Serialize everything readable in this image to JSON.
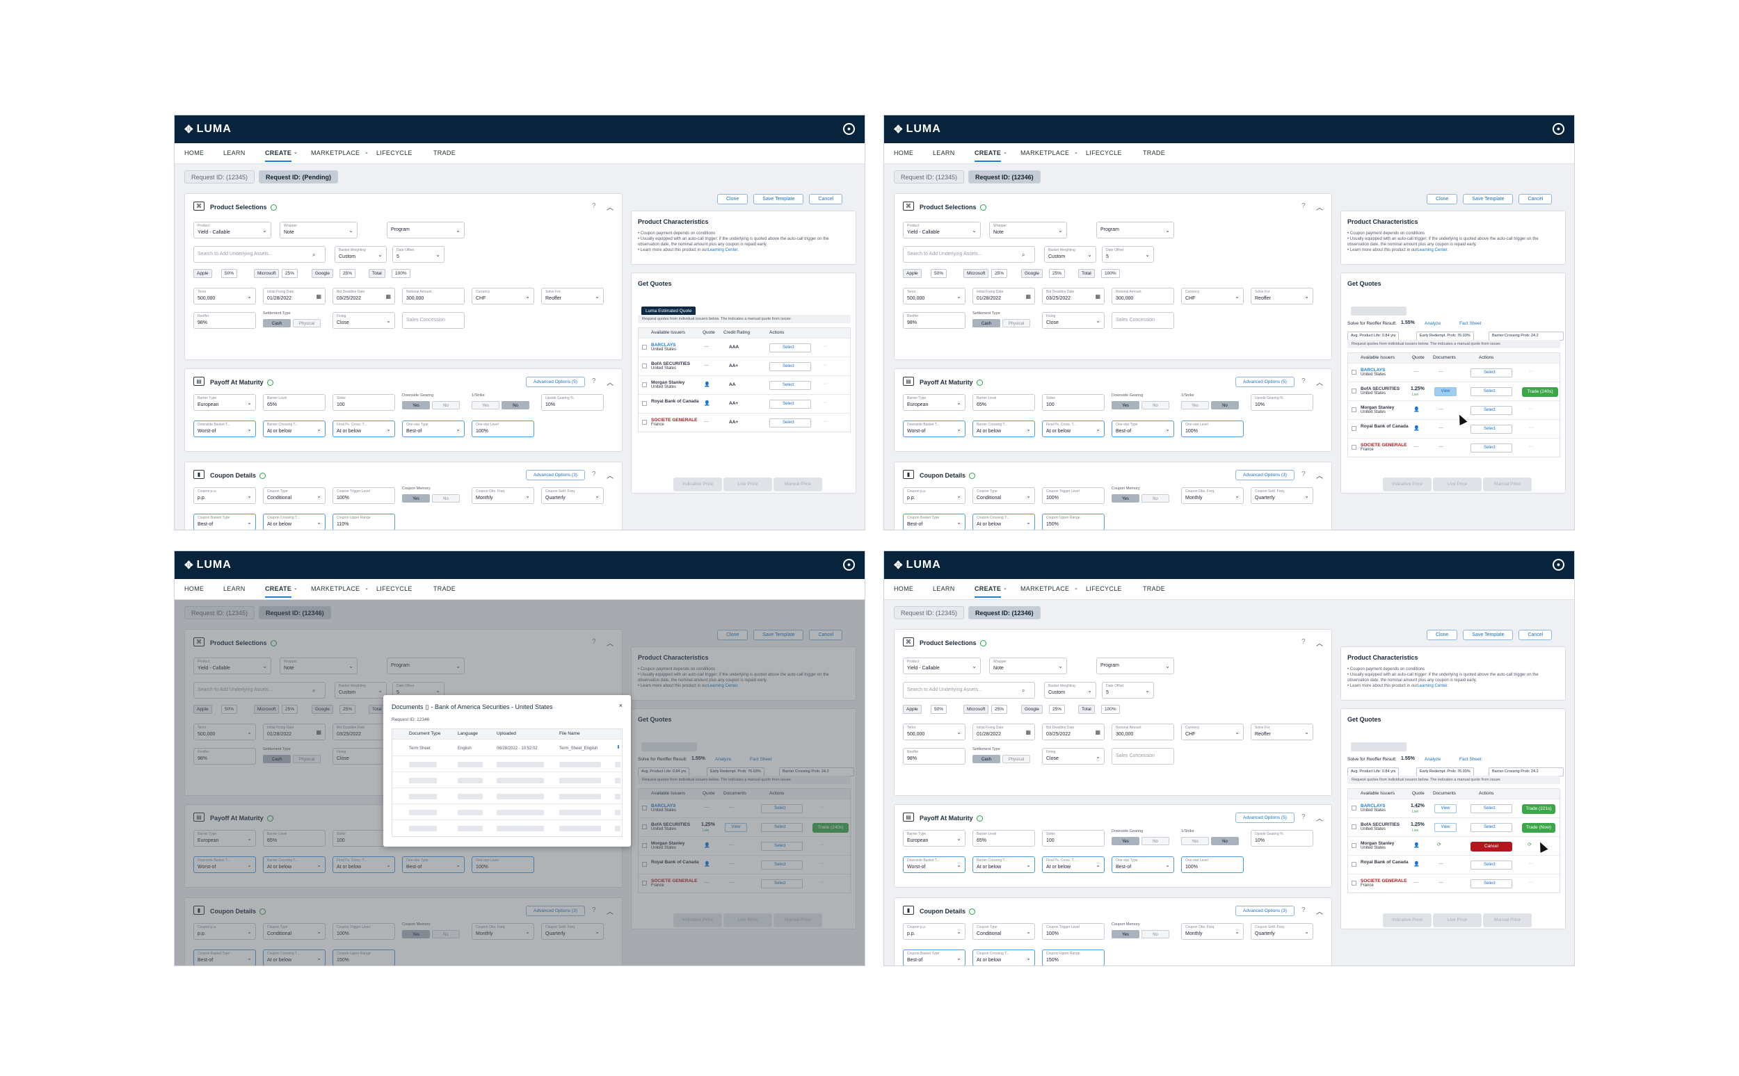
{
  "app": {
    "logo": "LUMA"
  },
  "nav": [
    "HOME",
    "LEARN",
    "CREATE",
    "MARKETPLACE",
    "LIFECYCLE",
    "TRADE"
  ],
  "request": {
    "id1": "Request ID: (12345)",
    "pending": "Request ID: (Pending)",
    "id2": "Request ID: (12346)"
  },
  "toolbar": {
    "clone": "Clone",
    "save": "Save Template",
    "cancel": "Cancel"
  },
  "product": {
    "title": "Product Selections",
    "product_label": "Product",
    "product_val": "Yield - Callable",
    "wrapper_label": "Wrapper",
    "wrapper_val": "Note",
    "program": "Program",
    "search_ph": "Search to Add Underlying Assets...",
    "bw_label": "Basket Weighting",
    "bw_val": "Custom",
    "doff_label": "Date Offset",
    "doff_val": "5",
    "tags": [
      "Apple",
      "50%",
      "Microsoft",
      "25%",
      "Google",
      "25%",
      "Total",
      "100%"
    ],
    "tenor_label": "Tenor",
    "tenor_val": "500,000",
    "ifd_label": "Initial Fixing Date",
    "ifd_val": "01/28/2022",
    "bdd_label": "Bid Deadline Date",
    "bdd_val": "03/25/2022",
    "notional_label": "Notional Amount",
    "notional_val": "300,000",
    "ccy_label": "Currency",
    "ccy_val": "CHF",
    "solve_label": "Solve For",
    "solve_val": "Reoffer",
    "reoffer_label": "Reoffer",
    "reoffer_val": "98%",
    "settle_label": "Settlement Type",
    "cash": "Cash",
    "physical": "Physical",
    "fixing_label": "Fixing",
    "fixing_val": "Close",
    "sales": "Sales Concession"
  },
  "payoff": {
    "title": "Payoff At Maturity",
    "adv": "Advanced Options (5)",
    "bt_label": "Barrier Type",
    "bt_val": "European",
    "bl_label": "Barrier Level",
    "bl_val": "65%",
    "strike_label": "Strike",
    "strike_val": "100",
    "dg_label": "Downside Gearing",
    "yes": "Yes",
    "no": "No",
    "ustrike": "1/Strike",
    "ug_label": "Upside Gearing %",
    "ug_val": "10%",
    "dbt_label": "Downside Basket T...",
    "dbt_val": "Worst-of",
    "bct_label": "Barrier Crossing T...",
    "bct_val": "At or below",
    "fpc_label": "Final Px. Cross. T...",
    "fpc_val": "At or below",
    "ost_label": "One-star Type",
    "ost_val": "Best-of",
    "osl_label": "One-star Level",
    "osl_val": "100%"
  },
  "coupon": {
    "title": "Coupon Details",
    "adv": "Advanced Options (3)",
    "cpa_label": "Coupon p.a.",
    "cpa_val": "p.p.",
    "ct_label": "Coupon Type",
    "ct_val": "Conditional",
    "ctl_label": "Coupon Trigger Level",
    "ctl_val": "100%",
    "cm_label": "Coupon Memory",
    "obs_label": "Coupon Obs. Freq.",
    "obs_val": "Monthly",
    "sett_label": "Coupon Settl. Freq.",
    "sett_val": "Quarterly",
    "cbt_label": "Coupon Basket Type",
    "cbt_val": "Best-of",
    "cc_label": "Coupon Crossing T...",
    "cc_val": "At or below",
    "cur_label": "Coupon Upper Range",
    "cur_val": "110%",
    "cur_val2": "150%"
  },
  "characteristics": {
    "title": "Product Characteristics",
    "b1": "• Coupon payment depends on conditions",
    "b2": "• Usually equipped with an auto-call trigger: if the underlying is quoted above the auto-call trigger on the observation date, the nominal amount plus any coupon is repaid early.",
    "b3": "• Learn more about this product in our",
    "link": "Learning Center."
  },
  "quotes": {
    "title": "Get Quotes",
    "luma_btn": "Luma Estimated Quote",
    "notice": "Request quotes from individual issuers below. The  indicates a manual quote from issuer.",
    "solve_result": "Solve for Reoffer Result:",
    "solve_rate": "1.55%",
    "analyze": "Analyze",
    "fact": "Fact Sheet",
    "avg": "Avg. Product Life: 0.84 yrs",
    "early": "Early Redempt. Prob: 76.03%",
    "barrier": "Barrier Crossing Prob: 24.2",
    "cols1": [
      "Available Issuers",
      "Quote",
      "Credit Rating",
      "Actions"
    ],
    "cols2": [
      "Available Issuers",
      "Quote",
      "Documents",
      "Actions"
    ],
    "issuers": [
      {
        "name": "BARCLAYS",
        "country": "United States",
        "rating": "AAA"
      },
      {
        "name": "BofA SECURITIES",
        "country": "United States",
        "rating": "AA+"
      },
      {
        "name": "Morgan Stanley",
        "country": "United States",
        "rating": "AA"
      },
      {
        "name": "Royal Bank of Canada",
        "country": "",
        "rating": "AA+"
      },
      {
        "name": "SOCIETE GENERALE",
        "country": "France",
        "rating": "AA+"
      }
    ],
    "select": "Select",
    "view": "View",
    "live": "Live",
    "rate1": "1.25%",
    "rate2": "1.42%",
    "trade_240": "Trade (240s)",
    "trade_221": "Trade (221s)",
    "trade_now": "Trade (Now)",
    "cancel": "Cancel",
    "indicative": "Indicative Price",
    "live_price": "Live Price",
    "manual": "Manual Price"
  },
  "modal": {
    "title": "Documents",
    "issuer": "- Bank of America Securities - United States",
    "req": "Request ID: 12346",
    "cols": [
      "Document Type",
      "Language",
      "Uploaded",
      "File Name"
    ],
    "row": [
      "Term Sheet",
      "English",
      "06/28/2022 - 10:52:02",
      "Term_Sheet_English"
    ]
  }
}
